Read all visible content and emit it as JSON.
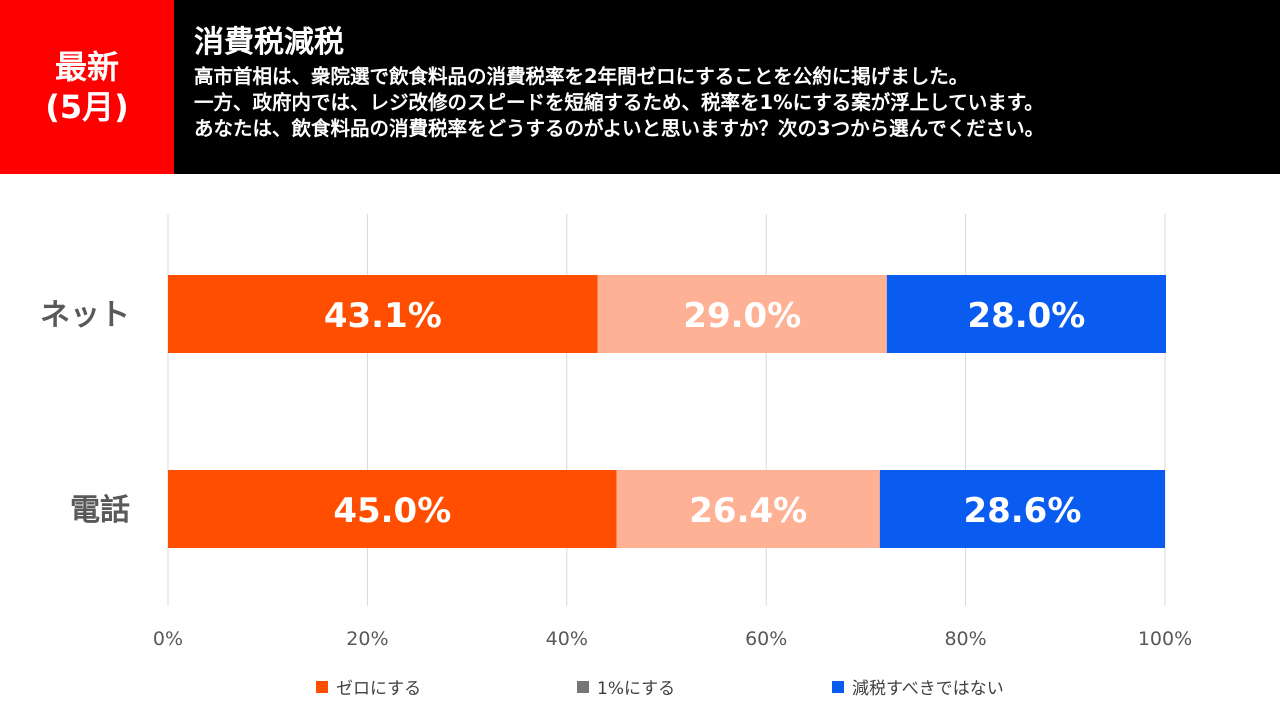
{
  "header": {
    "badge_line1": "最新",
    "badge_line2": "(5月)",
    "title": "消費税減税",
    "question": [
      "高市首相は、衆院選で飲食料品の消費税率を2年間ゼロにすることを公約に掲げました。",
      "一方、政府内では、レジ改修のスピードを短縮するため、税率を1%にする案が浮上しています。",
      "あなたは、飲食料品の消費税率をどうするのがよいと思いますか？次の3つから選んでください。"
    ]
  },
  "legend": [
    {
      "label": "ゼロにする",
      "color": "#ff4e00"
    },
    {
      "label": "1%にする",
      "color": "#767676"
    },
    {
      "label": "減税すべきではない",
      "color": "#0a5cf0"
    }
  ],
  "chart_data": {
    "type": "bar",
    "orientation": "horizontal",
    "stacked": true,
    "categories": [
      "ネット",
      "電話"
    ],
    "series": [
      {
        "name": "ゼロにする",
        "values": [
          43.1,
          45.0
        ],
        "labels": [
          "43.1%",
          "45.0%"
        ],
        "color": "#ff4e00"
      },
      {
        "name": "1%にする",
        "values": [
          29.0,
          26.4
        ],
        "labels": [
          "29.0%",
          "26.4%"
        ],
        "color": "#ffb196"
      },
      {
        "name": "減税すべきではない",
        "values": [
          28.0,
          28.6
        ],
        "labels": [
          "28.0%",
          "28.6%"
        ],
        "color": "#0a5cf0"
      }
    ],
    "xlim": [
      0,
      100
    ],
    "x_ticks": [
      "0%",
      "20%",
      "40%",
      "60%",
      "80%",
      "100%"
    ],
    "grid": true,
    "legend_position": "bottom"
  }
}
